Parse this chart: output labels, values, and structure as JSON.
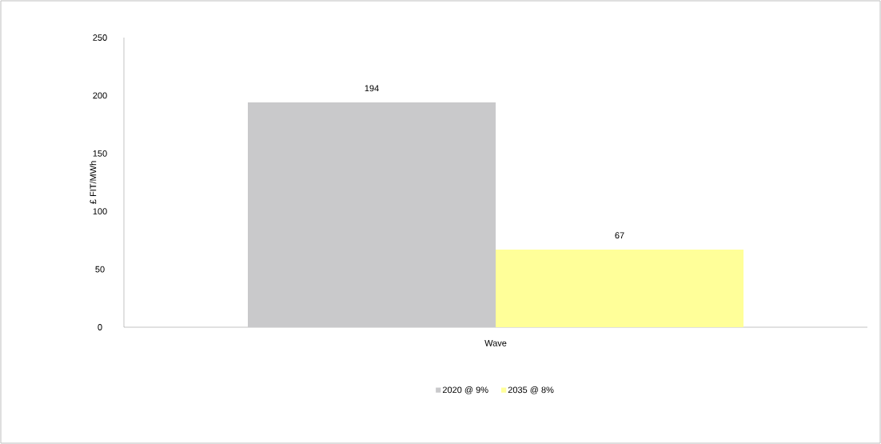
{
  "chart_data": {
    "type": "bar",
    "ylabel": "£ FIT/MWh",
    "categories": [
      "Wave"
    ],
    "series": [
      {
        "name": "2020 @ 9%",
        "color": "#c9c9cb",
        "values": [
          194
        ]
      },
      {
        "name": "2035 @ 8%",
        "color": "#ffff99",
        "values": [
          67
        ]
      }
    ],
    "ylim": [
      0,
      250
    ],
    "yticks": [
      0,
      50,
      100,
      150,
      200,
      250
    ],
    "data_labels": true,
    "legend": "bottom",
    "grid": false
  }
}
